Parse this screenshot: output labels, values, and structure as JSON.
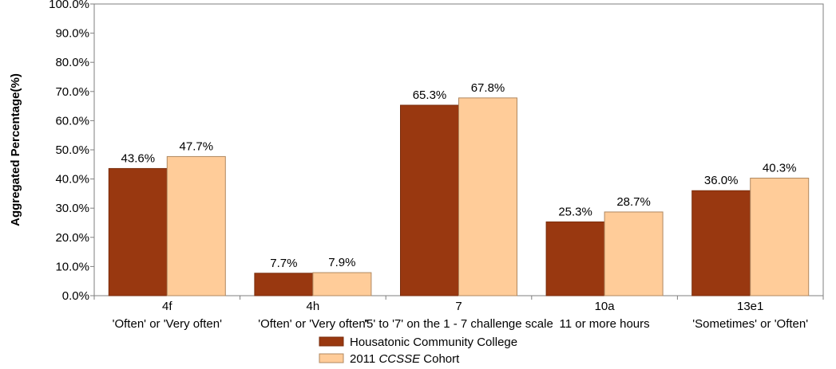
{
  "chart_data": {
    "type": "bar",
    "ylabel": "Aggregated Percentage(%)",
    "ylim": [
      0,
      100
    ],
    "yticks": [
      "0.0%",
      "10.0%",
      "20.0%",
      "30.0%",
      "40.0%",
      "50.0%",
      "60.0%",
      "70.0%",
      "80.0%",
      "90.0%",
      "100.0%"
    ],
    "categories": [
      {
        "code": "4f",
        "label": "'Often' or 'Very often'"
      },
      {
        "code": "4h",
        "label": "'Often' or 'Very often'"
      },
      {
        "code": "7",
        "label": "'5' to '7' on the 1 - 7 challenge scale"
      },
      {
        "code": "10a",
        "label": "11 or more hours"
      },
      {
        "code": "13e1",
        "label": "'Sometimes' or 'Often'"
      }
    ],
    "series": [
      {
        "name": "Housatonic Community College",
        "color": "#993810",
        "values": [
          43.6,
          7.7,
          65.3,
          25.3,
          36.0
        ],
        "labels": [
          "43.6%",
          "7.7%",
          "65.3%",
          "25.3%",
          "36.0%"
        ]
      },
      {
        "name": "2011 CCSSE Cohort",
        "color": "#FFCC99",
        "values": [
          47.7,
          7.9,
          67.8,
          28.7,
          40.3
        ],
        "labels": [
          "47.7%",
          "7.9%",
          "67.8%",
          "28.7%",
          "40.3%"
        ]
      }
    ],
    "legend": {
      "placement": "bottom-center",
      "entries": [
        {
          "text": "Housatonic Community College"
        },
        {
          "prefix": "2011 ",
          "italic": "CCSSE",
          "suffix": " Cohort"
        }
      ]
    },
    "grid": false
  }
}
